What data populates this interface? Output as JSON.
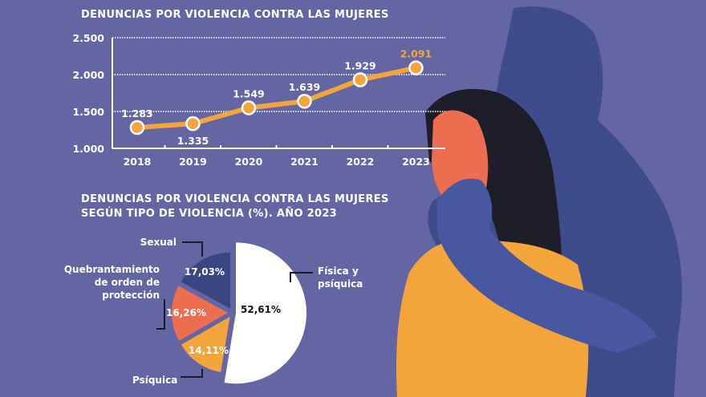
{
  "colors": {
    "background": "#6466a3",
    "line": "#f3a53c",
    "highlight": "#f3a53c",
    "sexual": "#3a4682",
    "quebrantamiento": "#ec6d4f",
    "psiquica": "#f3a53c",
    "fisica": "#ffffff"
  },
  "chart_data": [
    {
      "type": "line",
      "title": "DENUNCIAS POR VIOLENCIA CONTRA LAS MUJERES",
      "categories": [
        "2018",
        "2019",
        "2020",
        "2021",
        "2022",
        "2023"
      ],
      "values": [
        1283,
        1335,
        1549,
        1639,
        1929,
        2091
      ],
      "data_labels": [
        "1.283",
        "1.335",
        "1.549",
        "1.639",
        "1.929",
        "2.091"
      ],
      "ylim": [
        1000,
        2500
      ],
      "yticks": [
        1000,
        1500,
        2000,
        2500
      ],
      "ytick_labels": [
        "1.000",
        "1.500",
        "2.000",
        "2.500"
      ],
      "grid": "dotted horizontal"
    },
    {
      "type": "pie",
      "title_lines": [
        "DENUNCIAS POR VIOLENCIA CONTRA LAS MUJERES",
        "SEGÚN TIPO DE VIOLENCIA (%). AÑO 2023"
      ],
      "slices": [
        {
          "label_lines": [
            "Física y",
            "psíquica"
          ],
          "value": 52.61,
          "value_label": "52,61%"
        },
        {
          "label_lines": [
            "Psíquica"
          ],
          "value": 14.11,
          "value_label": "14,11%"
        },
        {
          "label_lines": [
            "Quebrantamiento",
            "de orden de",
            "protección"
          ],
          "value": 16.26,
          "value_label": "16,26%"
        },
        {
          "label_lines": [
            "Sexual"
          ],
          "value": 17.03,
          "value_label": "17,03%"
        }
      ]
    }
  ]
}
